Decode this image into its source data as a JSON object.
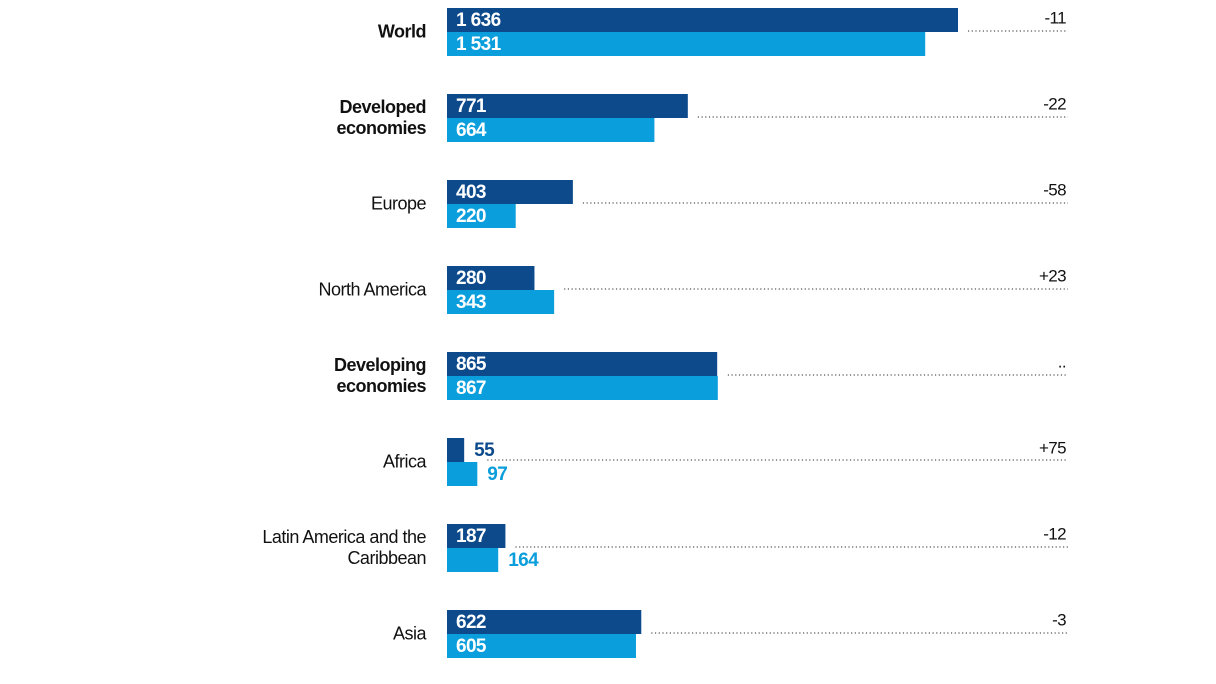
{
  "chart_data": {
    "type": "bar",
    "orientation": "horizontal",
    "categories": [
      "World",
      "Developed economies",
      "Europe",
      "North America",
      "Developing economies",
      "Africa",
      "Latin America and the Caribbean",
      "Asia"
    ],
    "bold": [
      true,
      true,
      false,
      false,
      true,
      false,
      false,
      false
    ],
    "series": [
      {
        "color": "#0c4a8c",
        "values": [
          1636,
          771,
          403,
          280,
          865,
          55,
          187,
          622
        ],
        "value_labels": [
          "1 636",
          "771",
          "403",
          "280",
          "865",
          "55",
          "187",
          "622"
        ]
      },
      {
        "color": "#0a9edc",
        "values": [
          1531,
          664,
          220,
          343,
          867,
          97,
          164,
          605
        ],
        "value_labels": [
          "1 531",
          "664",
          "220",
          "343",
          "867",
          "97",
          "164",
          "605"
        ]
      }
    ],
    "annotations": [
      "-11",
      "-22",
      "-58",
      "+23",
      "..",
      "+75",
      "-12",
      "-3"
    ]
  }
}
